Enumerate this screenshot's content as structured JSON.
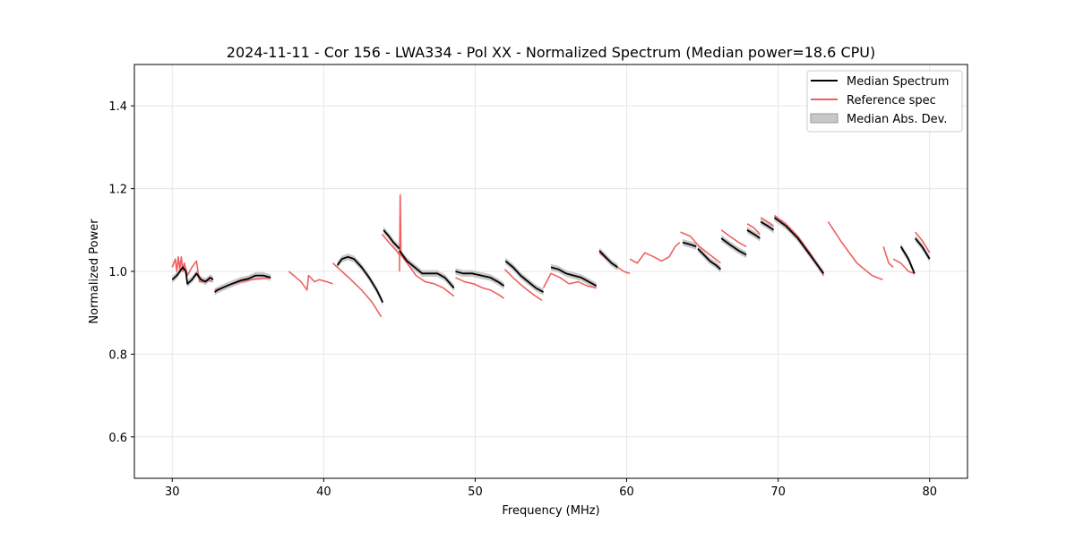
{
  "chart_data": {
    "type": "line",
    "title": "2024-11-11 - Cor 156 - LWA334 - Pol XX - Normalized Spectrum (Median power=18.6 CPU)",
    "xlabel": "Frequency (MHz)",
    "ylabel": "Normalized Power",
    "xlim": [
      27.5,
      82.5
    ],
    "ylim": [
      0.5,
      1.5
    ],
    "xticks": [
      30,
      40,
      50,
      60,
      70,
      80
    ],
    "yticks": [
      0.6,
      0.8,
      1.0,
      1.2,
      1.4
    ],
    "xtick_labels": [
      "30",
      "40",
      "50",
      "60",
      "70",
      "80"
    ],
    "ytick_labels": [
      "0.6",
      "0.8",
      "1.0",
      "1.2",
      "1.4"
    ],
    "grid": true,
    "legend_position": "top-right",
    "legend": [
      {
        "label": "Median Spectrum",
        "kind": "line",
        "color": "#000000"
      },
      {
        "label": "Reference spec",
        "kind": "line",
        "color": "#f06060"
      },
      {
        "label": "Median Abs. Dev.",
        "kind": "band",
        "color": "#c8c8c8"
      }
    ],
    "series": [
      {
        "name": "Median Spectrum",
        "color": "#000000",
        "segments": [
          {
            "x": [
              30.0,
              30.3,
              30.5,
              30.7,
              30.9,
              31.0,
              31.3,
              31.6,
              31.9,
              32.2,
              32.5,
              32.7
            ],
            "y": [
              0.98,
              0.99,
              1.0,
              1.01,
              1.0,
              0.97,
              0.98,
              0.995,
              0.98,
              0.975,
              0.985,
              0.98
            ]
          },
          {
            "x": [
              32.8,
              33.0,
              33.3,
              33.8,
              34.5,
              35.0,
              35.5,
              36.0,
              36.5
            ],
            "y": [
              0.95,
              0.955,
              0.96,
              0.968,
              0.978,
              0.982,
              0.99,
              0.99,
              0.985
            ]
          },
          {
            "x": [
              40.9,
              41.2,
              41.6,
              42.0,
              42.5,
              43.0,
              43.5,
              43.9
            ],
            "y": [
              1.015,
              1.03,
              1.035,
              1.03,
              1.01,
              0.985,
              0.955,
              0.925
            ]
          },
          {
            "x": [
              43.95,
              44.3,
              44.6,
              45.0
            ],
            "y": [
              1.1,
              1.085,
              1.07,
              1.055
            ]
          },
          {
            "x": [
              45.0,
              45.5,
              46.0,
              46.5,
              47.0,
              47.5,
              48.0,
              48.6
            ],
            "y": [
              1.05,
              1.025,
              1.01,
              0.995,
              0.995,
              0.995,
              0.985,
              0.96
            ]
          },
          {
            "x": [
              48.7,
              49.2,
              49.8,
              50.4,
              51.0,
              51.5,
              51.9
            ],
            "y": [
              1.0,
              0.995,
              0.995,
              0.99,
              0.985,
              0.975,
              0.965
            ]
          },
          {
            "x": [
              52.0,
              52.5,
              53.0,
              53.5,
              54.0,
              54.5
            ],
            "y": [
              1.025,
              1.01,
              0.99,
              0.975,
              0.96,
              0.95
            ]
          },
          {
            "x": [
              55.0,
              55.5,
              56.0,
              56.5,
              57.0,
              57.5,
              58.0
            ],
            "y": [
              1.01,
              1.005,
              0.995,
              0.99,
              0.985,
              0.975,
              0.965
            ]
          },
          {
            "x": [
              58.2,
              58.6,
              59.0,
              59.4
            ],
            "y": [
              1.05,
              1.035,
              1.02,
              1.01
            ]
          },
          {
            "x": [
              63.7,
              64.2,
              64.6
            ],
            "y": [
              1.07,
              1.065,
              1.06
            ]
          },
          {
            "x": [
              64.7,
              65.1,
              65.5,
              65.9,
              66.2
            ],
            "y": [
              1.055,
              1.04,
              1.025,
              1.015,
              1.005
            ]
          },
          {
            "x": [
              66.25,
              66.8,
              67.4,
              67.9
            ],
            "y": [
              1.08,
              1.065,
              1.05,
              1.04
            ]
          },
          {
            "x": [
              67.95,
              68.4,
              68.8
            ],
            "y": [
              1.1,
              1.09,
              1.08
            ]
          },
          {
            "x": [
              68.85,
              69.3,
              69.7
            ],
            "y": [
              1.12,
              1.11,
              1.1
            ]
          },
          {
            "x": [
              69.75,
              70.5,
              71.3,
              72.1,
              73.0
            ],
            "y": [
              1.13,
              1.11,
              1.08,
              1.04,
              0.995
            ]
          },
          {
            "x": [
              78.1,
              78.6,
              79.0
            ],
            "y": [
              1.06,
              1.03,
              0.995
            ]
          },
          {
            "x": [
              79.05,
              79.5,
              80.0
            ],
            "y": [
              1.08,
              1.06,
              1.03
            ]
          }
        ]
      },
      {
        "name": "Reference spec",
        "color": "#f06060",
        "segments": [
          {
            "x": [
              30.0,
              30.2,
              30.3,
              30.4,
              30.5,
              30.6,
              30.7,
              30.8,
              31.0,
              31.3,
              31.6,
              31.8,
              32.0,
              32.3,
              32.6
            ],
            "y": [
              1.01,
              1.03,
              1.0,
              1.035,
              1.005,
              1.035,
              1.0,
              1.02,
              0.99,
              1.01,
              1.025,
              0.975,
              0.975,
              0.98,
              0.975
            ]
          },
          {
            "x": [
              32.8,
              33.3,
              33.8,
              34.5,
              35.2,
              35.8,
              36.5
            ],
            "y": [
              0.955,
              0.96,
              0.968,
              0.975,
              0.98,
              0.982,
              0.985
            ]
          },
          {
            "x": [
              37.7,
              38.5,
              38.9,
              39.0,
              39.4,
              39.7,
              40.2,
              40.6
            ],
            "y": [
              1.0,
              0.975,
              0.955,
              0.99,
              0.975,
              0.98,
              0.975,
              0.97
            ]
          },
          {
            "x": [
              40.6,
              41.2,
              41.8,
              42.5,
              43.2,
              43.8
            ],
            "y": [
              1.02,
              1.0,
              0.98,
              0.955,
              0.925,
              0.89
            ]
          },
          {
            "x": [
              43.85,
              44.3,
              44.8,
              45.0
            ],
            "y": [
              1.09,
              1.07,
              1.05,
              1.04
            ]
          },
          {
            "x": [
              45.0,
              45.05,
              45.1
            ],
            "y": [
              1.0,
              1.185,
              1.04
            ]
          },
          {
            "x": [
              45.1,
              45.6,
              46.1,
              46.7,
              47.3,
              47.9,
              48.6
            ],
            "y": [
              1.04,
              1.015,
              0.99,
              0.975,
              0.97,
              0.96,
              0.94
            ]
          },
          {
            "x": [
              48.7,
              49.3,
              49.9,
              50.5,
              51.0,
              51.5,
              51.9
            ],
            "y": [
              0.985,
              0.975,
              0.97,
              0.96,
              0.955,
              0.945,
              0.935
            ]
          },
          {
            "x": [
              51.95,
              52.5,
              53.1,
              53.8,
              54.4
            ],
            "y": [
              1.005,
              0.985,
              0.965,
              0.945,
              0.93
            ]
          },
          {
            "x": [
              54.5,
              55.0,
              55.6,
              56.2,
              56.8,
              57.4,
              58.0
            ],
            "y": [
              0.96,
              0.995,
              0.985,
              0.97,
              0.975,
              0.965,
              0.96
            ]
          },
          {
            "x": [
              58.2,
              58.7,
              59.2,
              59.8,
              60.2
            ],
            "y": [
              1.045,
              1.03,
              1.015,
              1.0,
              0.995
            ]
          },
          {
            "x": [
              60.2,
              60.7,
              61.2,
              61.8,
              62.3,
              62.8,
              63.2,
              63.5
            ],
            "y": [
              1.03,
              1.02,
              1.045,
              1.035,
              1.025,
              1.035,
              1.06,
              1.07
            ]
          },
          {
            "x": [
              63.55,
              64.2,
              64.8,
              65.5,
              66.2
            ],
            "y": [
              1.095,
              1.085,
              1.06,
              1.04,
              1.02
            ]
          },
          {
            "x": [
              66.25,
              66.8,
              67.4,
              67.9
            ],
            "y": [
              1.1,
              1.085,
              1.07,
              1.06
            ]
          },
          {
            "x": [
              67.95,
              68.4,
              68.8
            ],
            "y": [
              1.115,
              1.105,
              1.09
            ]
          },
          {
            "x": [
              68.85,
              69.3,
              69.7
            ],
            "y": [
              1.13,
              1.12,
              1.11
            ]
          },
          {
            "x": [
              69.75,
              70.5,
              71.3,
              72.1,
              73.0
            ],
            "y": [
              1.135,
              1.115,
              1.085,
              1.045,
              0.99
            ]
          },
          {
            "x": [
              73.3,
              74.2,
              75.2,
              76.2,
              76.9
            ],
            "y": [
              1.12,
              1.07,
              1.02,
              0.99,
              0.98
            ]
          },
          {
            "x": [
              76.95,
              77.3,
              77.6
            ],
            "y": [
              1.06,
              1.02,
              1.01
            ]
          },
          {
            "x": [
              77.6,
              78.1,
              78.6,
              79.0
            ],
            "y": [
              1.03,
              1.02,
              1.0,
              0.995
            ]
          },
          {
            "x": [
              79.05,
              79.5,
              80.0
            ],
            "y": [
              1.095,
              1.075,
              1.045
            ]
          }
        ]
      }
    ],
    "mad_band": {
      "name": "Median Abs. Dev.",
      "color": "#c8c8c8",
      "half_width": 0.008
    }
  }
}
